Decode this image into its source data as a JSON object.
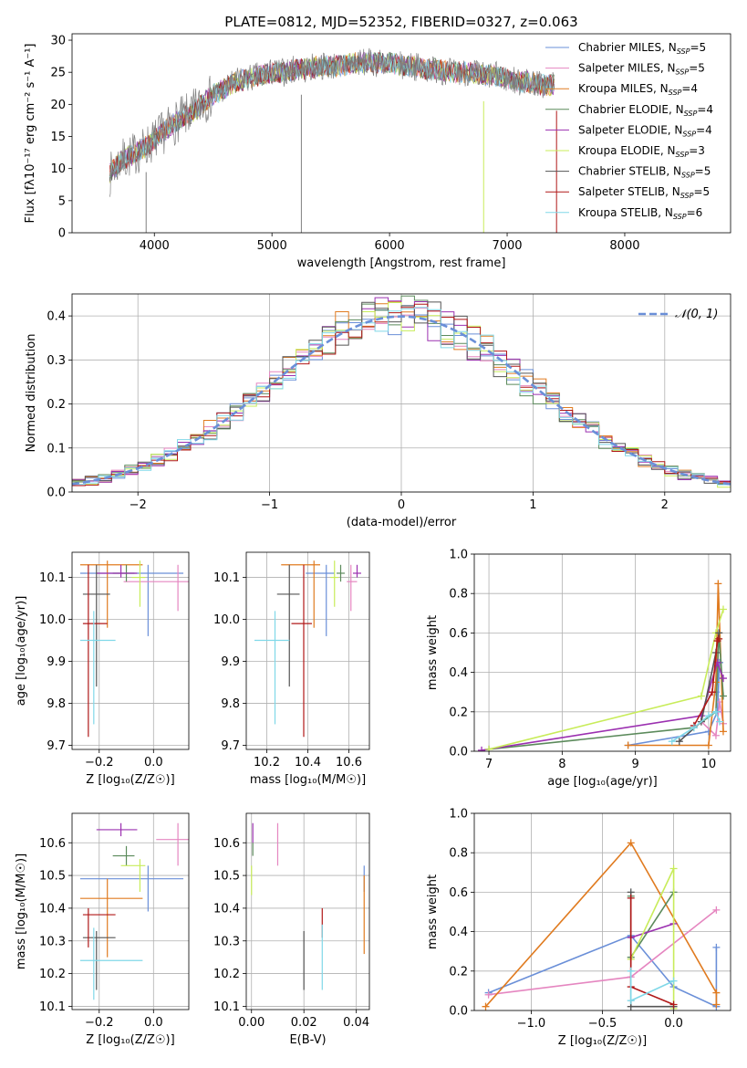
{
  "figure": {
    "title": "PLATE=0812, MJD=52352, FIBERID=0327, z=0.063"
  },
  "chart_data": [
    {
      "id": "spectrum",
      "type": "line",
      "xlabel": "wavelength [Angstrom, rest frame]",
      "ylabel": "Flux [fλ10⁻¹⁷ erg cm⁻² s⁻¹ A⁻¹]",
      "xlim": [
        3300,
        8900
      ],
      "ylim": [
        0,
        31
      ],
      "xticks": [
        4000,
        5000,
        6000,
        7000,
        8000
      ],
      "yticks": [
        0,
        5,
        10,
        15,
        20,
        25,
        30
      ],
      "grid": false,
      "legend": "upper right",
      "data_color": "#808080",
      "observed_envelope": {
        "x": [
          3620,
          3700,
          3800,
          3900,
          4000,
          4100,
          4200,
          4300,
          4400,
          4500,
          4600,
          4700,
          4800,
          4900,
          5000,
          5100,
          5200,
          5300,
          5400,
          5500,
          5600,
          5700,
          5800,
          5900,
          6000,
          6100,
          6200,
          6300,
          6400,
          6500,
          6600,
          6700,
          6800,
          6900,
          7000,
          7100,
          7200,
          7300,
          7400
        ],
        "y": [
          9,
          11,
          12,
          13,
          14.5,
          16,
          17.5,
          18.5,
          20,
          21.5,
          22.5,
          23.5,
          24,
          24.5,
          25,
          25,
          25.5,
          25.5,
          26,
          26,
          26,
          26.5,
          26.5,
          26.5,
          26.5,
          26,
          26,
          25.5,
          25.5,
          25,
          25,
          25,
          24.5,
          24.5,
          24,
          23.5,
          23.5,
          23,
          23
        ]
      },
      "dips": [
        {
          "x": 3930,
          "y": 0
        },
        {
          "x": 5250,
          "y": 0
        },
        {
          "x": 6800,
          "y": 0
        },
        {
          "x": 7420,
          "y": 0
        }
      ],
      "series": [
        {
          "name": "Chabrier MILES, N",
          "sub": "SSP",
          "n": "=5",
          "color": "#6a8fd8"
        },
        {
          "name": "Salpeter MILES, N",
          "sub": "SSP",
          "n": "=5",
          "color": "#e586c0"
        },
        {
          "name": "Kroupa MILES, N",
          "sub": "SSP",
          "n": "=4",
          "color": "#e07b20"
        },
        {
          "name": "Chabrier ELODIE, N",
          "sub": "SSP",
          "n": "=4",
          "color": "#5b8a5b"
        },
        {
          "name": "Salpeter ELODIE, N",
          "sub": "SSP",
          "n": "=4",
          "color": "#9b30b0"
        },
        {
          "name": "Kroupa ELODIE, N",
          "sub": "SSP",
          "n": "=3",
          "color": "#c8ec5a"
        },
        {
          "name": "Chabrier STELIB, N",
          "sub": "SSP",
          "n": "=5",
          "color": "#555555"
        },
        {
          "name": "Salpeter STELIB, N",
          "sub": "SSP",
          "n": "=5",
          "color": "#b01818"
        },
        {
          "name": "Kroupa STELIB, N",
          "sub": "SSP",
          "n": "=6",
          "color": "#80d8e8"
        }
      ]
    },
    {
      "id": "residuals",
      "type": "line",
      "xlabel": "(data-model)/error",
      "ylabel": "Normed distribution",
      "xlim": [
        -2.5,
        2.5
      ],
      "ylim": [
        0,
        0.45
      ],
      "xticks": [
        -2,
        -1,
        0,
        1,
        2
      ],
      "yticks": [
        0.0,
        0.1,
        0.2,
        0.3,
        0.4
      ],
      "grid": true,
      "legend": "upper right",
      "normal_label": "𝒩(0, 1)",
      "normal_color": "#6a8fd8",
      "bin_width": 0.1
    },
    {
      "id": "age_vs_Z",
      "type": "scatter",
      "xlabel": "Z [log₁₀(Z/Z☉)]",
      "ylabel": "age  [log₁₀(age/yr)]",
      "xlim": [
        -0.3,
        0.13
      ],
      "ylim": [
        9.69,
        10.16
      ],
      "xticks": [
        -0.2,
        0.0
      ],
      "yticks": [
        9.7,
        9.8,
        9.9,
        10.0,
        10.1
      ],
      "grid": true,
      "points": [
        {
          "color": "#6a8fd8",
          "x": -0.02,
          "y": 10.11,
          "xerr": [
            0.25,
            0.13
          ],
          "yerr": [
            0.15,
            0.02
          ]
        },
        {
          "color": "#e586c0",
          "x": 0.09,
          "y": 10.09,
          "xerr": [
            0.2,
            0.05
          ],
          "yerr": [
            0.07,
            0.04
          ]
        },
        {
          "color": "#e07b20",
          "x": -0.17,
          "y": 10.13,
          "xerr": [
            0.1,
            0.13
          ],
          "yerr": [
            0.15,
            0.01
          ]
        },
        {
          "color": "#5b8a5b",
          "x": -0.1,
          "y": 10.11,
          "xerr": [
            0.05,
            0.03
          ],
          "yerr": [
            0.02,
            0.02
          ]
        },
        {
          "color": "#9b30b0",
          "x": -0.12,
          "y": 10.11,
          "xerr": [
            0.09,
            0.06
          ],
          "yerr": [
            0.01,
            0.02
          ]
        },
        {
          "color": "#c8ec5a",
          "x": -0.05,
          "y": 10.1,
          "xerr": [
            0.03,
            0.02
          ],
          "yerr": [
            0.07,
            0.04
          ]
        },
        {
          "color": "#555555",
          "x": -0.21,
          "y": 10.06,
          "xerr": [
            0.05,
            0.05
          ],
          "yerr": [
            0.22,
            0.07
          ]
        },
        {
          "color": "#b01818",
          "x": -0.24,
          "y": 9.99,
          "xerr": [
            0.02,
            0.07
          ],
          "yerr": [
            0.27,
            0.14
          ]
        },
        {
          "color": "#80d8e8",
          "x": -0.22,
          "y": 9.95,
          "xerr": [
            0.05,
            0.08
          ],
          "yerr": [
            0.2,
            0.07
          ]
        }
      ]
    },
    {
      "id": "age_vs_mass",
      "type": "scatter",
      "xlabel": "mass [log₁₀(M/M☉)]",
      "ylabel": "",
      "xlim": [
        10.1,
        10.7
      ],
      "ylim": [
        9.69,
        10.16
      ],
      "xticks": [
        10.2,
        10.4,
        10.6
      ],
      "yticks": [
        9.7,
        9.8,
        9.9,
        10.0,
        10.1
      ],
      "grid": true,
      "points": [
        {
          "color": "#6a8fd8",
          "x": 10.49,
          "y": 10.11,
          "xerr": [
            0.1,
            0.04
          ],
          "yerr": [
            0.15,
            0.02
          ]
        },
        {
          "color": "#e586c0",
          "x": 10.61,
          "y": 10.09,
          "xerr": [
            0.02,
            0.03
          ],
          "yerr": [
            0.07,
            0.04
          ]
        },
        {
          "color": "#e07b20",
          "x": 10.43,
          "y": 10.13,
          "xerr": [
            0.16,
            0.03
          ],
          "yerr": [
            0.15,
            0.01
          ]
        },
        {
          "color": "#5b8a5b",
          "x": 10.56,
          "y": 10.11,
          "xerr": [
            0.02,
            0.02
          ],
          "yerr": [
            0.02,
            0.02
          ]
        },
        {
          "color": "#9b30b0",
          "x": 10.64,
          "y": 10.11,
          "xerr": [
            0.02,
            0.02
          ],
          "yerr": [
            0.01,
            0.02
          ]
        },
        {
          "color": "#c8ec5a",
          "x": 10.53,
          "y": 10.1,
          "xerr": [
            0.02,
            0.02
          ],
          "yerr": [
            0.07,
            0.04
          ]
        },
        {
          "color": "#555555",
          "x": 10.31,
          "y": 10.06,
          "xerr": [
            0.06,
            0.05
          ],
          "yerr": [
            0.22,
            0.07
          ]
        },
        {
          "color": "#b01818",
          "x": 10.38,
          "y": 9.99,
          "xerr": [
            0.06,
            0.04
          ],
          "yerr": [
            0.27,
            0.14
          ]
        },
        {
          "color": "#80d8e8",
          "x": 10.24,
          "y": 9.95,
          "xerr": [
            0.1,
            0.07
          ],
          "yerr": [
            0.2,
            0.07
          ]
        }
      ]
    },
    {
      "id": "weight_vs_age",
      "type": "line",
      "xlabel": "age  [log₁₀(age/yr)]",
      "ylabel": "mass weight",
      "xlim": [
        6.8,
        10.3
      ],
      "ylim": [
        0,
        1.0
      ],
      "xticks": [
        7,
        8,
        9,
        10
      ],
      "yticks": [
        0.0,
        0.2,
        0.4,
        0.6,
        0.8,
        1.0
      ],
      "grid": true,
      "series": [
        {
          "color": "#6a8fd8",
          "x": [
            8.9,
            10.0,
            10.12,
            10.15,
            10.1
          ],
          "y": [
            0.03,
            0.1,
            0.2,
            0.45,
            0.3
          ]
        },
        {
          "color": "#e586c0",
          "x": [
            9.9,
            10.1,
            10.15,
            10.2
          ],
          "y": [
            0.15,
            0.08,
            0.25,
            0.14
          ]
        },
        {
          "color": "#e07b20",
          "x": [
            8.9,
            10.0,
            10.1,
            10.13,
            10.2
          ],
          "y": [
            0.03,
            0.03,
            0.35,
            0.85,
            0.1
          ]
        },
        {
          "color": "#5b8a5b",
          "x": [
            7.0,
            9.8,
            10.1,
            10.14,
            10.2
          ],
          "y": [
            0.01,
            0.12,
            0.2,
            0.6,
            0.28
          ]
        },
        {
          "color": "#9b30b0",
          "x": [
            6.9,
            9.9,
            10.12,
            10.2
          ],
          "y": [
            0.005,
            0.18,
            0.45,
            0.37
          ]
        },
        {
          "color": "#c8ec5a",
          "x": [
            7.0,
            9.9,
            10.1,
            10.2
          ],
          "y": [
            0.01,
            0.28,
            0.6,
            0.72
          ]
        },
        {
          "color": "#555555",
          "x": [
            9.6,
            9.9,
            10.1,
            10.14
          ],
          "y": [
            0.05,
            0.15,
            0.5,
            0.6
          ]
        },
        {
          "color": "#b01818",
          "x": [
            9.8,
            10.05,
            10.12,
            10.14
          ],
          "y": [
            0.13,
            0.3,
            0.56,
            0.57
          ]
        },
        {
          "color": "#80d8e8",
          "x": [
            9.5,
            9.8,
            10.0,
            10.1,
            10.15
          ],
          "y": [
            0.05,
            0.12,
            0.18,
            0.2,
            0.15
          ]
        }
      ]
    },
    {
      "id": "mass_vs_Z",
      "type": "scatter",
      "xlabel": "Z [log₁₀(Z/Z☉)]",
      "ylabel": "mass [log₁₀(M/M☉)]",
      "xlim": [
        -0.3,
        0.13
      ],
      "ylim": [
        10.09,
        10.69
      ],
      "xticks": [
        -0.2,
        0.0
      ],
      "yticks": [
        10.1,
        10.2,
        10.3,
        10.4,
        10.5,
        10.6
      ],
      "grid": true,
      "points": [
        {
          "color": "#6a8fd8",
          "x": -0.02,
          "y": 10.49,
          "xerr": [
            0.25,
            0.13
          ],
          "yerr": [
            0.1,
            0.04
          ]
        },
        {
          "color": "#e586c0",
          "x": 0.09,
          "y": 10.61,
          "xerr": [
            0.08,
            0.05
          ],
          "yerr": [
            0.08,
            0.05
          ]
        },
        {
          "color": "#e07b20",
          "x": -0.17,
          "y": 10.43,
          "xerr": [
            0.1,
            0.13
          ],
          "yerr": [
            0.18,
            0.06
          ]
        },
        {
          "color": "#5b8a5b",
          "x": -0.1,
          "y": 10.56,
          "xerr": [
            0.05,
            0.03
          ],
          "yerr": [
            0.03,
            0.03
          ]
        },
        {
          "color": "#9b30b0",
          "x": -0.12,
          "y": 10.64,
          "xerr": [
            0.09,
            0.06
          ],
          "yerr": [
            0.02,
            0.02
          ]
        },
        {
          "color": "#c8ec5a",
          "x": -0.05,
          "y": 10.53,
          "xerr": [
            0.07,
            0.02
          ],
          "yerr": [
            0.08,
            0.02
          ]
        },
        {
          "color": "#555555",
          "x": -0.21,
          "y": 10.31,
          "xerr": [
            0.05,
            0.07
          ],
          "yerr": [
            0.16,
            0.02
          ]
        },
        {
          "color": "#b01818",
          "x": -0.24,
          "y": 10.38,
          "xerr": [
            0.02,
            0.1
          ],
          "yerr": [
            0.1,
            0.02
          ]
        },
        {
          "color": "#80d8e8",
          "x": -0.22,
          "y": 10.24,
          "xerr": [
            0.05,
            0.18
          ],
          "yerr": [
            0.12,
            0.1
          ]
        }
      ]
    },
    {
      "id": "mass_vs_ebv",
      "type": "scatter",
      "xlabel": "E(B-V)",
      "ylabel": "",
      "xlim": [
        -0.002,
        0.045
      ],
      "ylim": [
        10.09,
        10.69
      ],
      "xticks": [
        0.0,
        0.02,
        0.04
      ],
      "yticks": [
        10.1,
        10.2,
        10.3,
        10.4,
        10.5,
        10.6
      ],
      "grid": true,
      "points": [
        {
          "color": "#6a8fd8",
          "x": 0.043,
          "y": 10.49,
          "yerr": [
            0.04,
            0.04
          ]
        },
        {
          "color": "#e586c0",
          "x": 0.01,
          "y": 10.6,
          "yerr": [
            0.07,
            0.06
          ]
        },
        {
          "color": "#e07b20",
          "x": 0.043,
          "y": 10.4,
          "yerr": [
            0.14,
            0.1
          ]
        },
        {
          "color": "#5b8a5b",
          "x": 0.0005,
          "y": 10.58,
          "yerr": [
            0.02,
            0.02
          ]
        },
        {
          "color": "#9b30b0",
          "x": 0.0005,
          "y": 10.63,
          "yerr": [
            0.03,
            0.03
          ]
        },
        {
          "color": "#c8ec5a",
          "x": 0.0,
          "y": 10.49,
          "yerr": [
            0.05,
            0.04
          ]
        },
        {
          "color": "#555555",
          "x": 0.02,
          "y": 10.24,
          "yerr": [
            0.09,
            0.09
          ]
        },
        {
          "color": "#b01818",
          "x": 0.027,
          "y": 10.35,
          "yerr": [
            0.04,
            0.05
          ]
        },
        {
          "color": "#80d8e8",
          "x": 0.027,
          "y": 10.25,
          "yerr": [
            0.1,
            0.1
          ]
        }
      ]
    },
    {
      "id": "weight_vs_Z",
      "type": "line",
      "xlabel": "Z [log₁₀(Z/Z☉)]",
      "ylabel": "mass weight",
      "xlim": [
        -1.4,
        0.4
      ],
      "ylim": [
        0,
        1.0
      ],
      "xticks": [
        -1.0,
        -0.5,
        0.0
      ],
      "yticks": [
        0.0,
        0.2,
        0.4,
        0.6,
        0.8,
        1.0
      ],
      "grid": true,
      "series": [
        {
          "color": "#6a8fd8",
          "x": [
            -1.3,
            -0.3,
            0.0,
            0.3,
            0.3
          ],
          "y": [
            0.09,
            0.38,
            0.12,
            0.02,
            0.32
          ]
        },
        {
          "color": "#e586c0",
          "x": [
            -1.3,
            -0.3,
            0.3
          ],
          "y": [
            0.08,
            0.17,
            0.51
          ]
        },
        {
          "color": "#e07b20",
          "x": [
            -1.32,
            -0.3,
            0.3,
            0.3
          ],
          "y": [
            0.02,
            0.85,
            0.09,
            0.03
          ]
        },
        {
          "color": "#5b8a5b",
          "x": [
            -0.3,
            -0.3,
            0.0
          ],
          "y": [
            0.58,
            0.27,
            0.6
          ]
        },
        {
          "color": "#9b30b0",
          "x": [
            -0.3,
            0.0
          ],
          "y": [
            0.37,
            0.44
          ]
        },
        {
          "color": "#c8ec5a",
          "x": [
            -0.3,
            0.0,
            0.0
          ],
          "y": [
            0.26,
            0.72,
            0.01
          ]
        },
        {
          "color": "#555555",
          "x": [
            -0.3,
            -0.3,
            0.0
          ],
          "y": [
            0.6,
            0.02,
            0.02
          ]
        },
        {
          "color": "#b01818",
          "x": [
            -0.3,
            -0.3,
            0.0
          ],
          "y": [
            0.57,
            0.12,
            0.03
          ]
        },
        {
          "color": "#80d8e8",
          "x": [
            -0.3,
            -0.3,
            0.0
          ],
          "y": [
            0.2,
            0.05,
            0.15
          ]
        }
      ]
    }
  ]
}
